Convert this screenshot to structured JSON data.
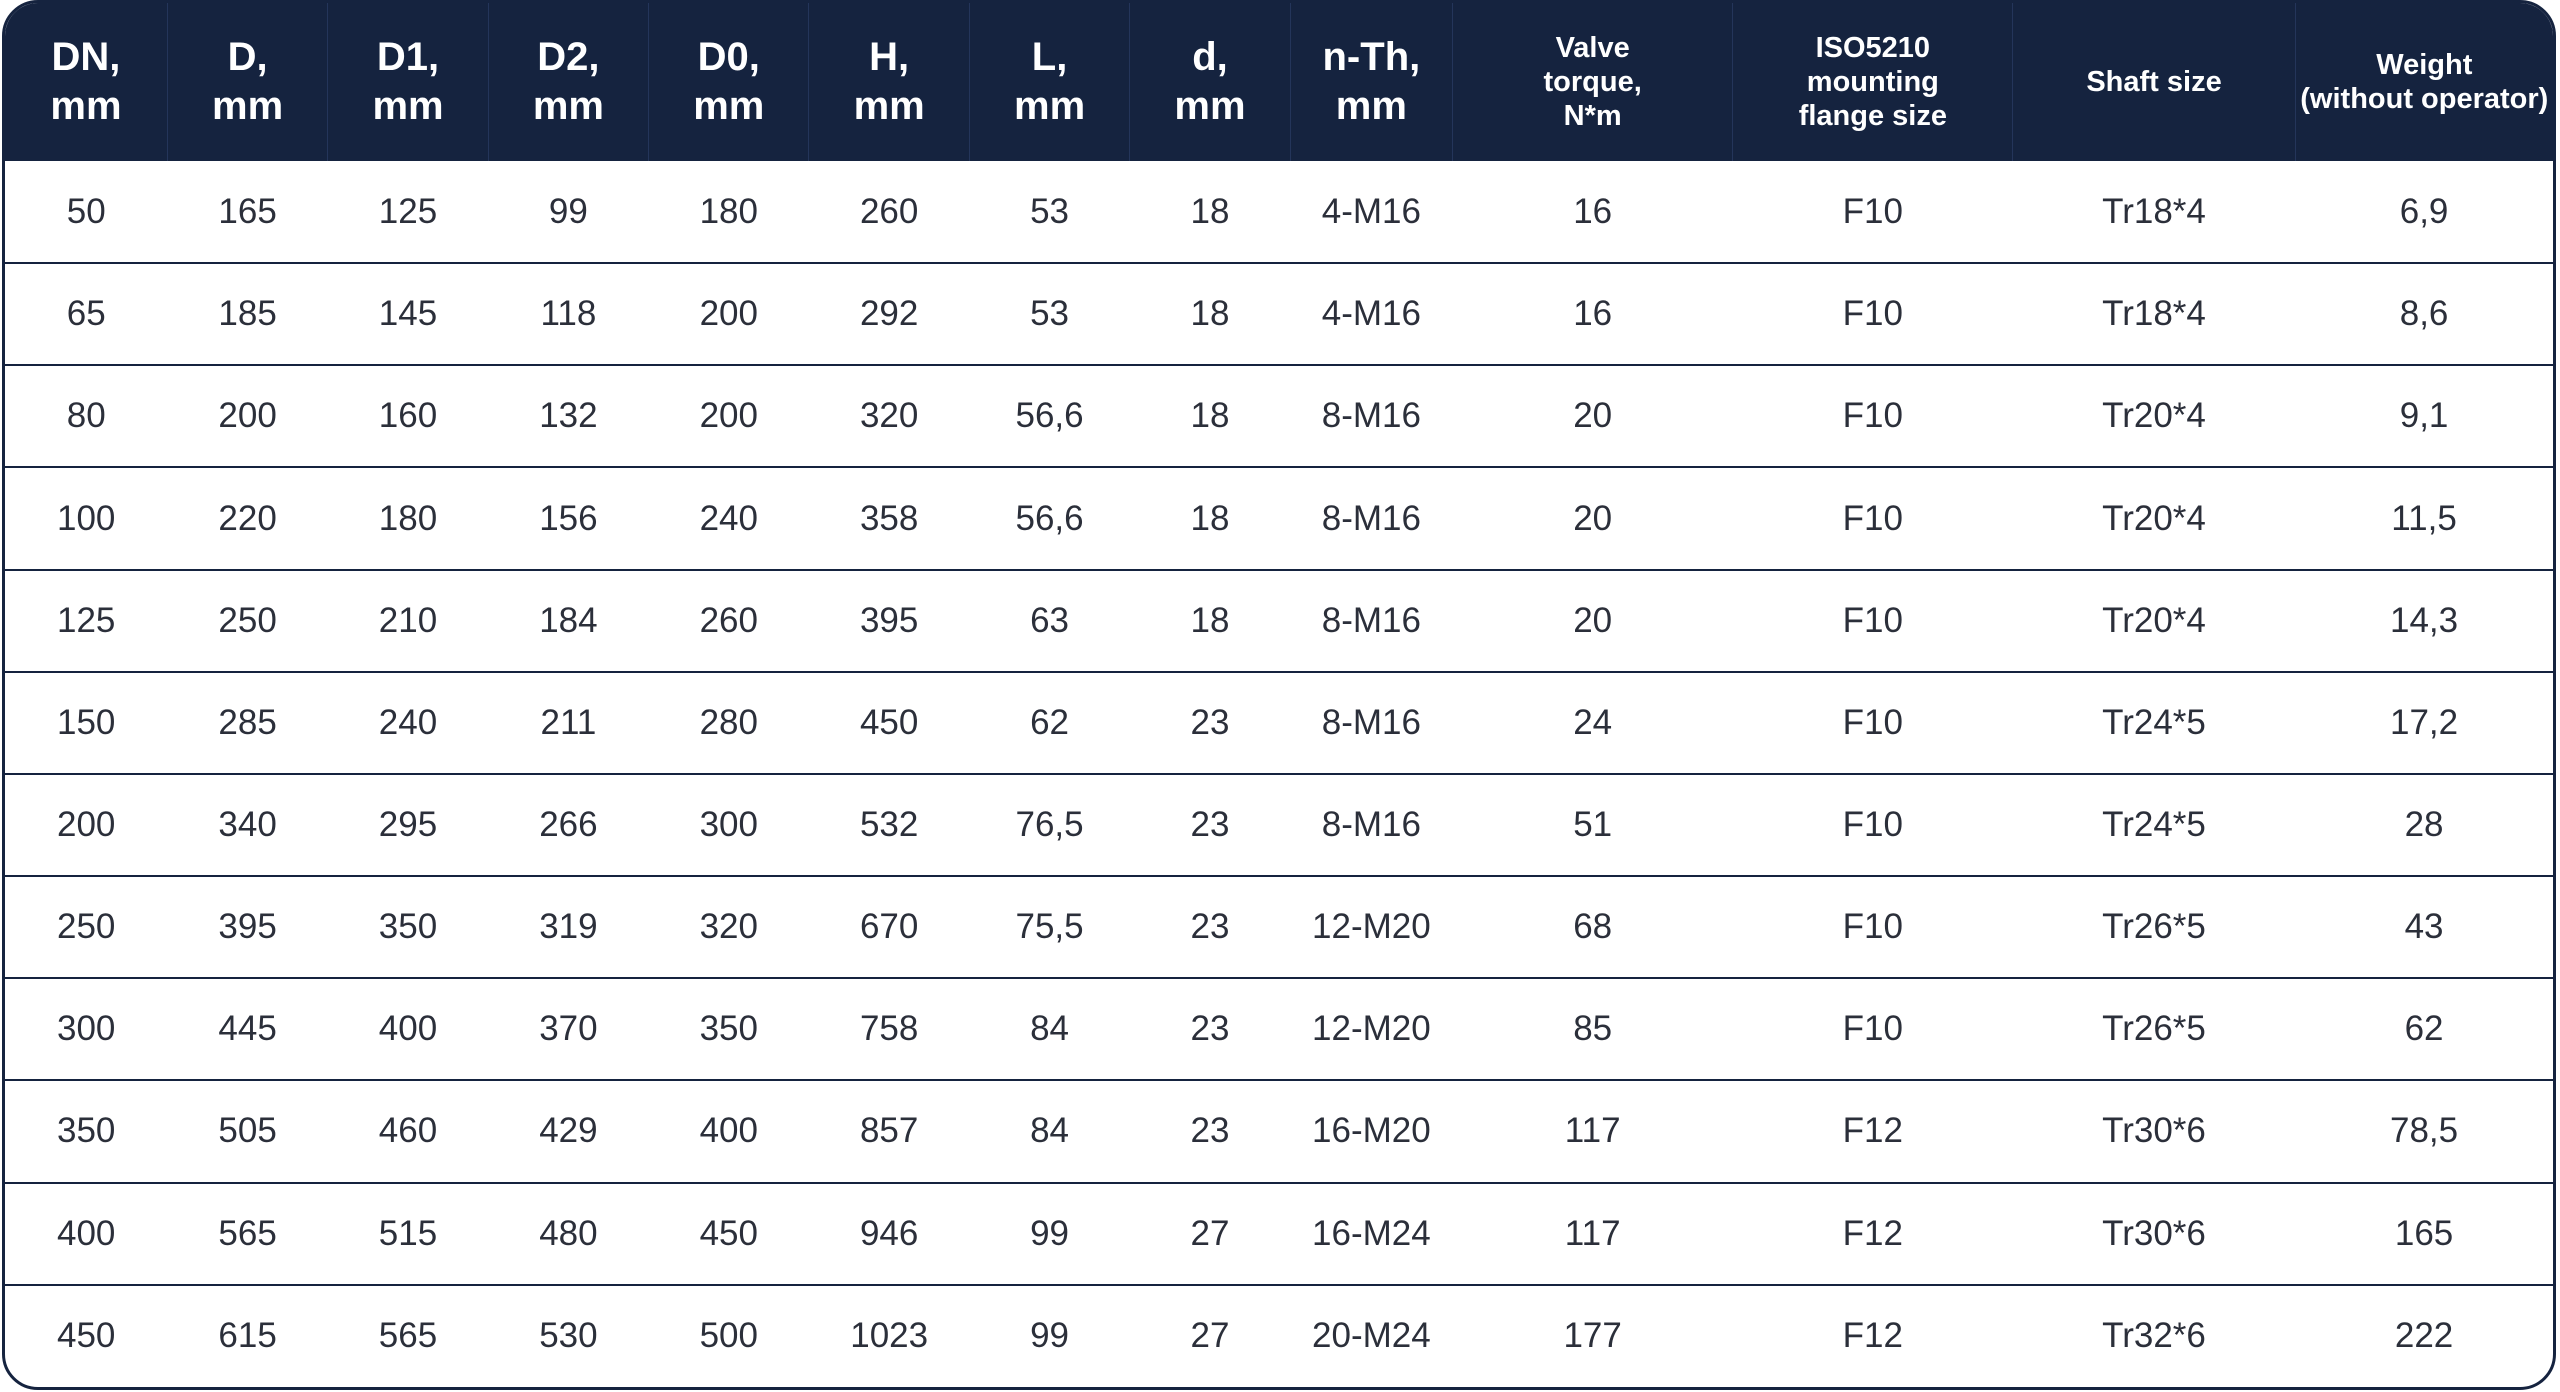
{
  "table": {
    "headers": [
      {
        "lines": [
          "DN,",
          "mm"
        ],
        "size": "big"
      },
      {
        "lines": [
          "D,",
          "mm"
        ],
        "size": "big"
      },
      {
        "lines": [
          "D1,",
          "mm"
        ],
        "size": "big"
      },
      {
        "lines": [
          "D2,",
          "mm"
        ],
        "size": "big"
      },
      {
        "lines": [
          "D0,",
          "mm"
        ],
        "size": "big"
      },
      {
        "lines": [
          "H,",
          "mm"
        ],
        "size": "big"
      },
      {
        "lines": [
          "L,",
          "mm"
        ],
        "size": "big"
      },
      {
        "lines": [
          "d,",
          "mm"
        ],
        "size": "big"
      },
      {
        "lines": [
          "n-Th,",
          "mm"
        ],
        "size": "big"
      },
      {
        "lines": [
          "Valve",
          "torque,",
          "N*m"
        ],
        "size": "small"
      },
      {
        "lines": [
          "ISO5210",
          "mounting",
          "flange size"
        ],
        "size": "small"
      },
      {
        "lines": [
          "Shaft size"
        ],
        "size": "small"
      },
      {
        "lines": [
          "Weight",
          "(without operator)"
        ],
        "size": "small"
      }
    ],
    "rows": [
      [
        "50",
        "165",
        "125",
        "99",
        "180",
        "260",
        "53",
        "18",
        "4-M16",
        "16",
        "F10",
        "Tr18*4",
        "6,9"
      ],
      [
        "65",
        "185",
        "145",
        "118",
        "200",
        "292",
        "53",
        "18",
        "4-M16",
        "16",
        "F10",
        "Tr18*4",
        "8,6"
      ],
      [
        "80",
        "200",
        "160",
        "132",
        "200",
        "320",
        "56,6",
        "18",
        "8-M16",
        "20",
        "F10",
        "Tr20*4",
        "9,1"
      ],
      [
        "100",
        "220",
        "180",
        "156",
        "240",
        "358",
        "56,6",
        "18",
        "8-M16",
        "20",
        "F10",
        "Tr20*4",
        "11,5"
      ],
      [
        "125",
        "250",
        "210",
        "184",
        "260",
        "395",
        "63",
        "18",
        "8-M16",
        "20",
        "F10",
        "Tr20*4",
        "14,3"
      ],
      [
        "150",
        "285",
        "240",
        "211",
        "280",
        "450",
        "62",
        "23",
        "8-M16",
        "24",
        "F10",
        "Tr24*5",
        "17,2"
      ],
      [
        "200",
        "340",
        "295",
        "266",
        "300",
        "532",
        "76,5",
        "23",
        "8-M16",
        "51",
        "F10",
        "Tr24*5",
        "28"
      ],
      [
        "250",
        "395",
        "350",
        "319",
        "320",
        "670",
        "75,5",
        "23",
        "12-M20",
        "68",
        "F10",
        "Tr26*5",
        "43"
      ],
      [
        "300",
        "445",
        "400",
        "370",
        "350",
        "758",
        "84",
        "23",
        "12-M20",
        "85",
        "F10",
        "Tr26*5",
        "62"
      ],
      [
        "350",
        "505",
        "460",
        "429",
        "400",
        "857",
        "84",
        "23",
        "16-M20",
        "117",
        "F12",
        "Tr30*6",
        "78,5"
      ],
      [
        "400",
        "565",
        "515",
        "480",
        "450",
        "946",
        "99",
        "27",
        "16-M24",
        "117",
        "F12",
        "Tr30*6",
        "165"
      ],
      [
        "450",
        "615",
        "565",
        "530",
        "500",
        "1023",
        "99",
        "27",
        "20-M24",
        "177",
        "F12",
        "Tr32*6",
        "222"
      ]
    ]
  },
  "colors": {
    "header_bg": "#15233f",
    "header_text": "#ffffff",
    "border": "#15233f",
    "cell_text": "#2b2f3a"
  }
}
